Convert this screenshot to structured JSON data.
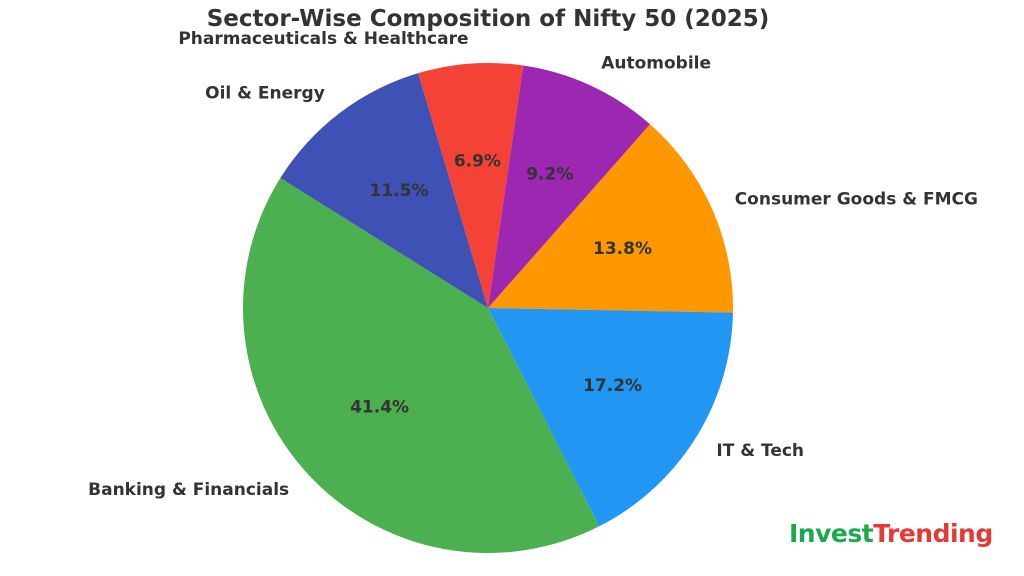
{
  "chart_data": {
    "type": "pie",
    "title": "Sector-Wise Composition of Nifty 50 (2025)",
    "slices": [
      {
        "label": "Consumer Goods & FMCG",
        "value": 13.8,
        "pct_label": "13.8%",
        "color": "#FF9800"
      },
      {
        "label": "IT & Tech",
        "value": 17.2,
        "pct_label": "17.2%",
        "color": "#2196F3"
      },
      {
        "label": "Banking & Financials",
        "value": 41.4,
        "pct_label": "41.4%",
        "color": "#4CAF50"
      },
      {
        "label": "Oil & Energy",
        "value": 11.5,
        "pct_label": "11.5%",
        "color": "#3F51B5"
      },
      {
        "label": "Pharmaceuticals & Healthcare",
        "value": 6.9,
        "pct_label": "6.9%",
        "color": "#F44336"
      },
      {
        "label": "Automobile",
        "value": 9.2,
        "pct_label": "9.2%",
        "color": "#9C27B0"
      }
    ],
    "start_angle_deg": 48.6,
    "direction": "clockwise"
  },
  "brand": {
    "part1": "Invest",
    "part2": "Trending",
    "color1": "#1BAA4B",
    "color2": "#E53935"
  }
}
